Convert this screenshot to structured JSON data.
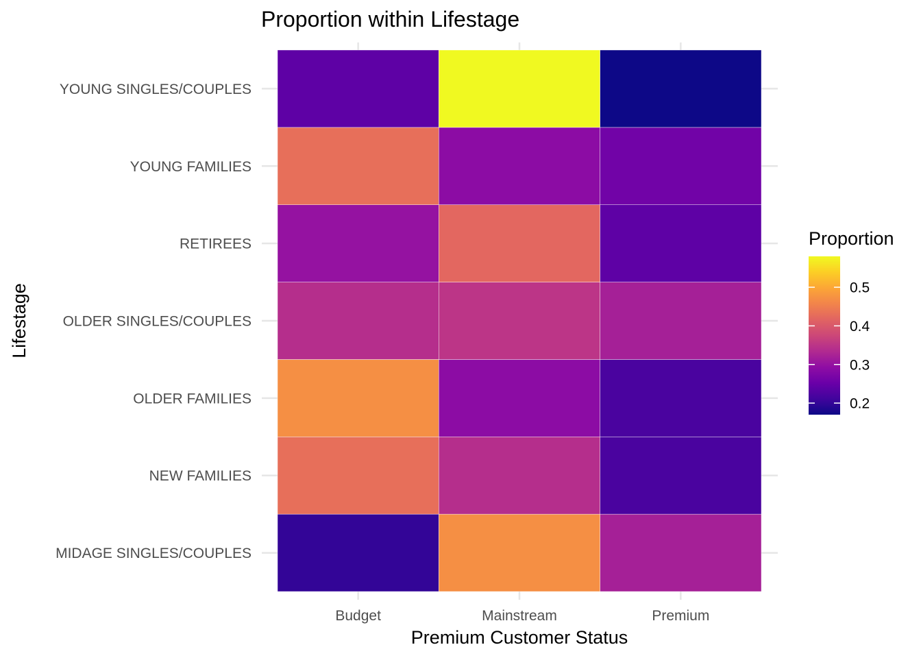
{
  "chart_data": {
    "type": "heatmap",
    "title": "Proportion within Lifestage",
    "xlabel": "Premium Customer Status",
    "ylabel": "Lifestage",
    "x_categories": [
      "Budget",
      "Mainstream",
      "Premium"
    ],
    "y_categories": [
      "MIDAGE SINGLES/COUPLES",
      "NEW FAMILIES",
      "OLDER FAMILIES",
      "OLDER SINGLES/COUPLES",
      "RETIREES",
      "YOUNG FAMILIES",
      "YOUNG SINGLES/COUPLES"
    ],
    "values": [
      [
        0.2,
        0.47,
        0.32
      ],
      [
        0.43,
        0.34,
        0.22
      ],
      [
        0.47,
        0.29,
        0.22
      ],
      [
        0.34,
        0.35,
        0.32
      ],
      [
        0.3,
        0.42,
        0.24
      ],
      [
        0.43,
        0.29,
        0.26
      ],
      [
        0.24,
        0.58,
        0.17
      ]
    ],
    "colorscale": "plasma",
    "legend": {
      "title": "Proportion",
      "min": 0.17,
      "max": 0.58,
      "ticks": [
        0.2,
        0.3,
        0.4,
        0.5
      ],
      "tick_labels": [
        "0.2",
        "0.3",
        "0.4",
        "0.5"
      ],
      "position": "right"
    },
    "grid": true
  }
}
